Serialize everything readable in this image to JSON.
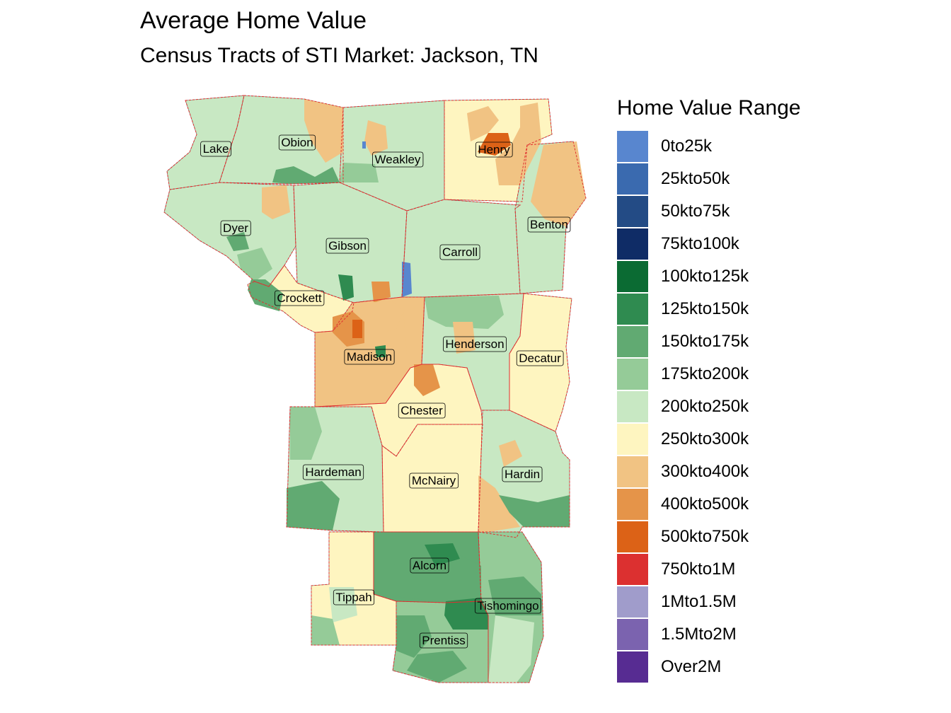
{
  "title": "Average Home Value",
  "subtitle": "Census Tracts of STI Market: Jackson, TN",
  "legend": {
    "title": "Home Value Range",
    "items": [
      {
        "label": "0to25k",
        "color": "#5886CF"
      },
      {
        "label": "25kto50k",
        "color": "#3A6AAF"
      },
      {
        "label": "50kto75k",
        "color": "#234B85"
      },
      {
        "label": "75kto100k",
        "color": "#0F2C66"
      },
      {
        "label": "100kto125k",
        "color": "#0B6B33"
      },
      {
        "label": "125kto150k",
        "color": "#2F8B50"
      },
      {
        "label": "150kto175k",
        "color": "#61AA72"
      },
      {
        "label": "175kto200k",
        "color": "#95CB98"
      },
      {
        "label": "200kto250k",
        "color": "#C8E8C3"
      },
      {
        "label": "250kto300k",
        "color": "#FEF5C0"
      },
      {
        "label": "300kto400k",
        "color": "#F1C383"
      },
      {
        "label": "400kto500k",
        "color": "#E59449"
      },
      {
        "label": "500kto750k",
        "color": "#DC6217"
      },
      {
        "label": "750kto1M",
        "color": "#DC3030"
      },
      {
        "label": "1Mto1.5M",
        "color": "#A09CCB"
      },
      {
        "label": "1.5Mto2M",
        "color": "#7B63AF"
      },
      {
        "label": "Over2M",
        "color": "#572C92"
      }
    ]
  },
  "map": {
    "boundary_color": "#E03030",
    "counties": [
      {
        "name": "Lake",
        "fill": "#C8E8C3"
      },
      {
        "name": "Obion",
        "fill": "#C8E8C3"
      },
      {
        "name": "Weakley",
        "fill": "#C8E8C3"
      },
      {
        "name": "Henry",
        "fill": "#FEF5C0"
      },
      {
        "name": "Benton",
        "fill": "#C8E8C3"
      },
      {
        "name": "Dyer",
        "fill": "#C8E8C3"
      },
      {
        "name": "Gibson",
        "fill": "#C8E8C3"
      },
      {
        "name": "Carroll",
        "fill": "#C8E8C3"
      },
      {
        "name": "Crockett",
        "fill": "#FEF5C0"
      },
      {
        "name": "Madison",
        "fill": "#F1C383"
      },
      {
        "name": "Henderson",
        "fill": "#C8E8C3"
      },
      {
        "name": "Decatur",
        "fill": "#FEF5C0"
      },
      {
        "name": "Chester",
        "fill": "#FEF5C0"
      },
      {
        "name": "Hardeman",
        "fill": "#C8E8C3"
      },
      {
        "name": "McNairy",
        "fill": "#FEF5C0"
      },
      {
        "name": "Hardin",
        "fill": "#C8E8C3"
      },
      {
        "name": "Alcorn",
        "fill": "#61AA72"
      },
      {
        "name": "Tippah",
        "fill": "#FEF5C0"
      },
      {
        "name": "Tishomingo",
        "fill": "#95CB98"
      },
      {
        "name": "Prentiss",
        "fill": "#95CB98"
      }
    ]
  }
}
